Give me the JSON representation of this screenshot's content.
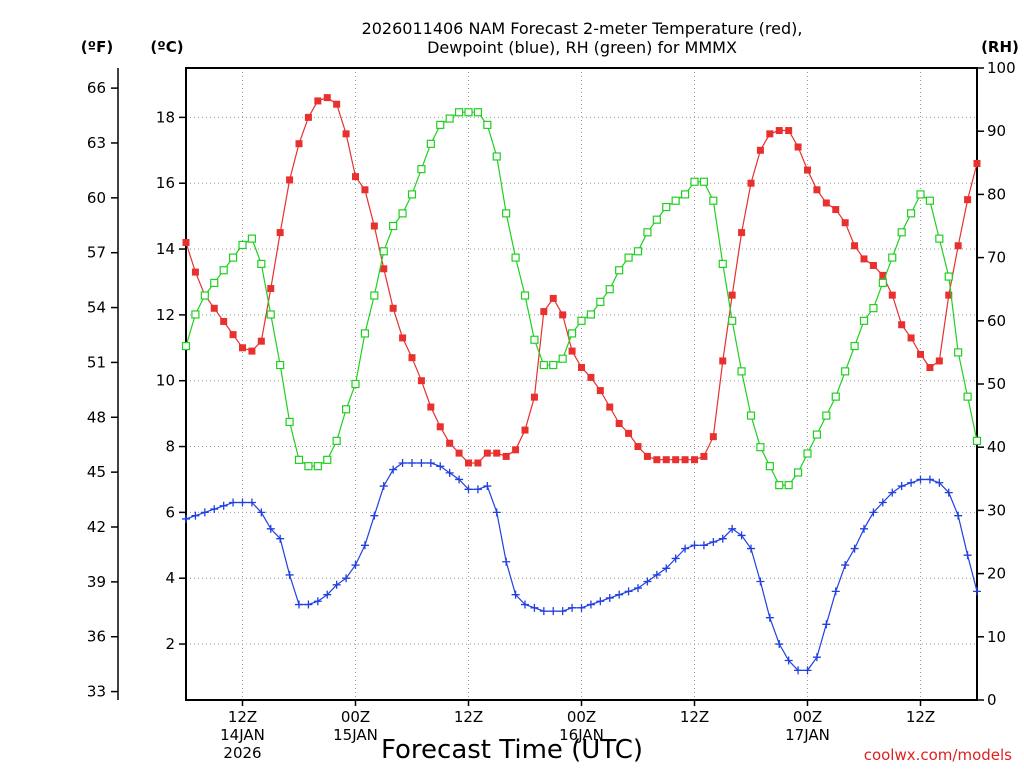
{
  "chart_data": {
    "type": "line",
    "title_lines": [
      "2026011406 NAM Forecast 2-meter Temperature (red),",
      "Dewpoint (blue), RH (green) for MMMX"
    ],
    "xlabel": "Forecast Time (UTC)",
    "credit": "coolwx.com/models",
    "axis_units": {
      "fahrenheit": "(ºF)",
      "celsius": "(ºC)",
      "rh": "(RH)"
    },
    "celsius_axis": {
      "min": 0.3,
      "max": 19.5,
      "ticks": [
        2,
        4,
        6,
        8,
        10,
        12,
        14,
        16,
        18
      ]
    },
    "fahrenheit_axis": {
      "ticks": [
        33,
        36,
        39,
        42,
        45,
        48,
        51,
        54,
        57,
        60,
        63,
        66
      ]
    },
    "rh_axis": {
      "min": 0,
      "max": 100,
      "ticks": [
        0,
        10,
        20,
        30,
        40,
        50,
        60,
        70,
        80,
        90,
        100
      ]
    },
    "x_axis": {
      "min_hour": 6,
      "max_hour": 90,
      "ticks": [
        {
          "hour": 12,
          "lines": [
            "12Z",
            "14JAN",
            "2026"
          ]
        },
        {
          "hour": 24,
          "lines": [
            "00Z",
            "15JAN"
          ]
        },
        {
          "hour": 36,
          "lines": [
            "12Z"
          ]
        },
        {
          "hour": 48,
          "lines": [
            "00Z",
            "16JAN"
          ]
        },
        {
          "hour": 60,
          "lines": [
            "12Z"
          ]
        },
        {
          "hour": 72,
          "lines": [
            "00Z",
            "17JAN"
          ]
        },
        {
          "hour": 84,
          "lines": [
            "12Z"
          ]
        }
      ]
    },
    "grid": true,
    "x_hours": [
      6,
      7,
      8,
      9,
      10,
      11,
      12,
      13,
      14,
      15,
      16,
      17,
      18,
      19,
      20,
      21,
      22,
      23,
      24,
      25,
      26,
      27,
      28,
      29,
      30,
      31,
      32,
      33,
      34,
      35,
      36,
      37,
      38,
      39,
      40,
      41,
      42,
      43,
      44,
      45,
      46,
      47,
      48,
      49,
      50,
      51,
      52,
      53,
      54,
      55,
      56,
      57,
      58,
      59,
      60,
      61,
      62,
      63,
      64,
      65,
      66,
      67,
      68,
      69,
      70,
      71,
      72,
      73,
      74,
      75,
      76,
      77,
      78,
      79,
      80,
      81,
      82,
      83,
      84,
      85,
      86,
      87,
      88,
      89,
      90
    ],
    "series": [
      {
        "name": "Temperature",
        "units": "C",
        "axis": "celsius",
        "color": "#e8302f",
        "marker": "filled-square",
        "values": [
          14.2,
          13.3,
          12.6,
          12.2,
          11.8,
          11.4,
          11.0,
          10.9,
          11.2,
          12.8,
          14.5,
          16.1,
          17.2,
          18.0,
          18.5,
          18.6,
          18.4,
          17.5,
          16.2,
          15.8,
          14.7,
          13.4,
          12.2,
          11.3,
          10.7,
          10.0,
          9.2,
          8.6,
          8.1,
          7.8,
          7.5,
          7.5,
          7.8,
          7.8,
          7.7,
          7.9,
          8.5,
          9.5,
          12.1,
          12.5,
          12.0,
          10.9,
          10.4,
          10.1,
          9.7,
          9.2,
          8.7,
          8.4,
          8.0,
          7.7,
          7.6,
          7.6,
          7.6,
          7.6,
          7.6,
          7.7,
          8.3,
          10.6,
          12.6,
          14.5,
          16.0,
          17.0,
          17.5,
          17.6,
          17.6,
          17.1,
          16.4,
          15.8,
          15.4,
          15.2,
          14.8,
          14.1,
          13.7,
          13.5,
          13.2,
          12.6,
          11.7,
          11.3,
          10.8,
          10.4,
          10.6,
          12.6,
          14.1,
          15.5,
          16.6
        ]
      },
      {
        "name": "Dewpoint",
        "units": "C",
        "axis": "celsius",
        "color": "#2040e0",
        "marker": "plus",
        "values": [
          5.8,
          5.9,
          6.0,
          6.1,
          6.2,
          6.3,
          6.3,
          6.3,
          6.0,
          5.5,
          5.2,
          4.1,
          3.2,
          3.2,
          3.3,
          3.5,
          3.8,
          4.0,
          4.4,
          5.0,
          5.9,
          6.8,
          7.3,
          7.5,
          7.5,
          7.5,
          7.5,
          7.4,
          7.2,
          7.0,
          6.7,
          6.7,
          6.8,
          6.0,
          4.5,
          3.5,
          3.2,
          3.1,
          3.0,
          3.0,
          3.0,
          3.1,
          3.1,
          3.2,
          3.3,
          3.4,
          3.5,
          3.6,
          3.7,
          3.9,
          4.1,
          4.3,
          4.6,
          4.9,
          5.0,
          5.0,
          5.1,
          5.2,
          5.5,
          5.3,
          4.9,
          3.9,
          2.8,
          2.0,
          1.5,
          1.2,
          1.2,
          1.6,
          2.6,
          3.6,
          4.4,
          4.9,
          5.5,
          6.0,
          6.3,
          6.6,
          6.8,
          6.9,
          7.0,
          7.0,
          6.9,
          6.6,
          5.9,
          4.7,
          3.6
        ]
      },
      {
        "name": "RH",
        "units": "%",
        "axis": "rh",
        "color": "#20d020",
        "marker": "open-square",
        "values": [
          56,
          61,
          64,
          66,
          68,
          70,
          72,
          73,
          69,
          61,
          53,
          44,
          38,
          37,
          37,
          38,
          41,
          46,
          50,
          58,
          64,
          71,
          75,
          77,
          80,
          84,
          88,
          91,
          92,
          93,
          93,
          93,
          91,
          86,
          77,
          70,
          64,
          57,
          53,
          53,
          54,
          58,
          60,
          61,
          63,
          65,
          68,
          70,
          71,
          74,
          76,
          78,
          79,
          80,
          82,
          82,
          79,
          69,
          60,
          52,
          45,
          40,
          37,
          34,
          34,
          36,
          39,
          42,
          45,
          48,
          52,
          56,
          60,
          62,
          66,
          70,
          74,
          77,
          80,
          79,
          73,
          67,
          55,
          48,
          41
        ]
      }
    ]
  }
}
